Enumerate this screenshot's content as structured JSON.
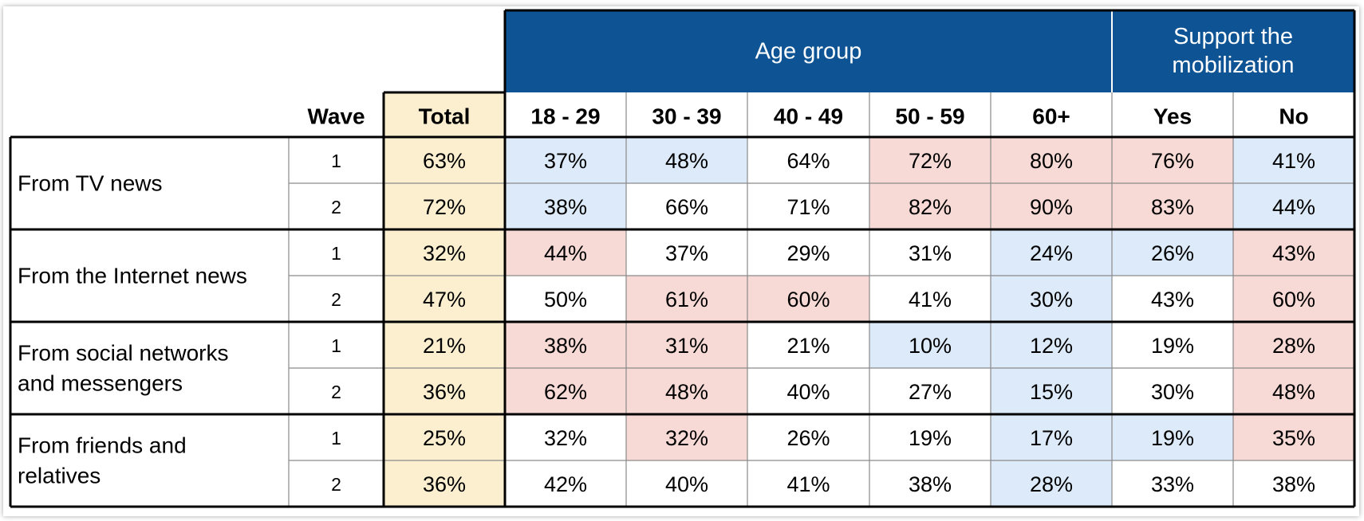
{
  "chart_data": {
    "type": "table",
    "header_groups": [
      {
        "label": "Age group",
        "columns": [
          "18 - 29",
          "30 - 39",
          "40 - 49",
          "50 - 59",
          "60+"
        ]
      },
      {
        "label": "Support the mobilization",
        "label_lines": [
          "Support the",
          "mobilization"
        ],
        "columns": [
          "Yes",
          "No"
        ]
      }
    ],
    "columns": [
      "Wave",
      "Total",
      "18 - 29",
      "30 - 39",
      "40 - 49",
      "50 - 59",
      "60+",
      "Yes",
      "No"
    ],
    "rows": [
      {
        "label": "From TV news",
        "label_lines": [
          "From TV news"
        ],
        "waves": [
          {
            "wave": "1",
            "values": [
              "63%",
              "37%",
              "48%",
              "64%",
              "72%",
              "80%",
              "76%",
              "41%"
            ],
            "shade": [
              "total",
              "blue",
              "blue",
              "",
              "red",
              "red",
              "red",
              "blue"
            ]
          },
          {
            "wave": "2",
            "values": [
              "72%",
              "38%",
              "66%",
              "71%",
              "82%",
              "90%",
              "83%",
              "44%"
            ],
            "shade": [
              "total",
              "blue",
              "",
              "",
              "red",
              "red",
              "red",
              "blue"
            ]
          }
        ]
      },
      {
        "label": "From the Internet news",
        "label_lines": [
          "From the Internet news"
        ],
        "waves": [
          {
            "wave": "1",
            "values": [
              "32%",
              "44%",
              "37%",
              "29%",
              "31%",
              "24%",
              "26%",
              "43%"
            ],
            "shade": [
              "total",
              "red",
              "",
              "",
              "",
              "blue",
              "blue",
              "red"
            ]
          },
          {
            "wave": "2",
            "values": [
              "47%",
              "50%",
              "61%",
              "60%",
              "41%",
              "30%",
              "43%",
              "60%"
            ],
            "shade": [
              "total",
              "",
              "red",
              "red",
              "",
              "blue",
              "",
              "red"
            ]
          }
        ]
      },
      {
        "label": "From social networks and messengers",
        "label_lines": [
          "From social networks",
          "and messengers"
        ],
        "waves": [
          {
            "wave": "1",
            "values": [
              "21%",
              "38%",
              "31%",
              "21%",
              "10%",
              "12%",
              "19%",
              "28%"
            ],
            "shade": [
              "total",
              "red",
              "red",
              "",
              "blue",
              "blue",
              "",
              "red"
            ]
          },
          {
            "wave": "2",
            "values": [
              "36%",
              "62%",
              "48%",
              "40%",
              "27%",
              "15%",
              "30%",
              "48%"
            ],
            "shade": [
              "total",
              "red",
              "red",
              "",
              "",
              "blue",
              "",
              "red"
            ]
          }
        ]
      },
      {
        "label": "From friends and relatives",
        "label_lines": [
          "From friends and",
          "relatives"
        ],
        "waves": [
          {
            "wave": "1",
            "values": [
              "25%",
              "32%",
              "32%",
              "26%",
              "19%",
              "17%",
              "19%",
              "35%"
            ],
            "shade": [
              "total",
              "",
              "red",
              "",
              "",
              "blue",
              "blue",
              "red"
            ]
          },
          {
            "wave": "2",
            "values": [
              "36%",
              "42%",
              "40%",
              "41%",
              "38%",
              "28%",
              "33%",
              "38%"
            ],
            "shade": [
              "total",
              "",
              "",
              "",
              "",
              "blue",
              "",
              ""
            ]
          }
        ]
      }
    ],
    "colors": {
      "header_bg": "#0E5394",
      "header_text": "#FFFFFF",
      "total_bg": "#FCEFCF",
      "red_bg": "#F7D9D5",
      "blue_bg": "#DCEAFA"
    }
  }
}
